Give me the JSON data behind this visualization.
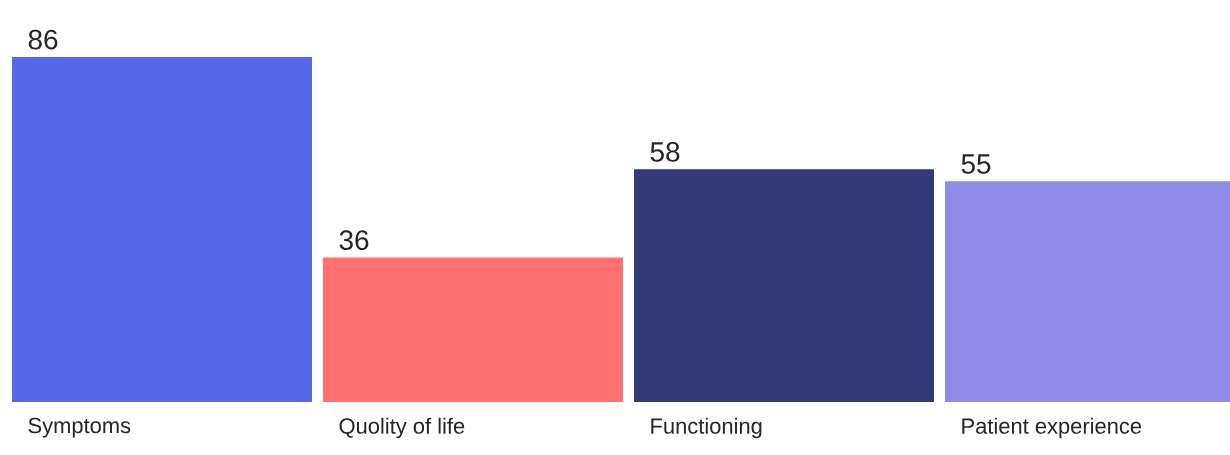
{
  "chart_data": {
    "type": "bar",
    "categories": [
      "Symptoms",
      "Quolity of life",
      "Functioning",
      "Patient experience"
    ],
    "values": [
      86,
      36,
      58,
      55
    ],
    "colors": [
      "#5468e8",
      "#ff7070",
      "#333a78",
      "#8f8ce8"
    ],
    "tick_labels": "x",
    "data_labels": true
  }
}
